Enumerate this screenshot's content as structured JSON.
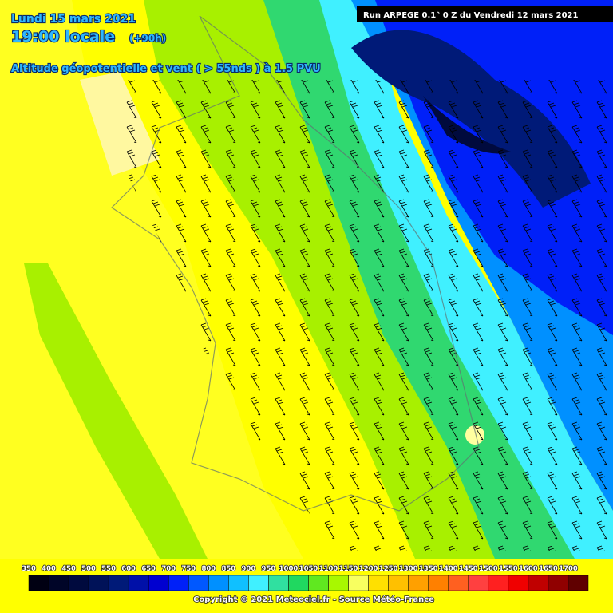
{
  "header": {
    "date": "Lundi 15 mars 2021",
    "time": "19:00 locale",
    "lead": "(+90h)",
    "parameter": "Altitude géopotentielle et vent ( > 55nds ) à 1.5 PVU",
    "run": "Run ARPEGE 0.1° 0 Z du Vendredi 12 mars 2021"
  },
  "legend": [
    {
      "label": "350",
      "color": "#000012"
    },
    {
      "label": "400",
      "color": "#000528"
    },
    {
      "label": "450",
      "color": "#000a3e"
    },
    {
      "label": "500",
      "color": "#001258"
    },
    {
      "label": "550",
      "color": "#001a78"
    },
    {
      "label": "600",
      "color": "#0010a8"
    },
    {
      "label": "650",
      "color": "#0000d0"
    },
    {
      "label": "700",
      "color": "#0020f8"
    },
    {
      "label": "750",
      "color": "#0058ff"
    },
    {
      "label": "800",
      "color": "#0090ff"
    },
    {
      "label": "850",
      "color": "#10c0ff"
    },
    {
      "label": "900",
      "color": "#40f0ff"
    },
    {
      "label": "950",
      "color": "#30e0a0"
    },
    {
      "label": "1000",
      "color": "#20d860"
    },
    {
      "label": "1050",
      "color": "#60e820"
    },
    {
      "label": "1100",
      "color": "#a8f800"
    },
    {
      "label": "1150",
      "color": "#f8ff60"
    },
    {
      "label": "1200",
      "color": "#ffe000"
    },
    {
      "label": "1250",
      "color": "#ffc000"
    },
    {
      "label": "1300",
      "color": "#ffa000"
    },
    {
      "label": "1350",
      "color": "#ff8000"
    },
    {
      "label": "1400",
      "color": "#ff6020"
    },
    {
      "label": "1450",
      "color": "#ff4040"
    },
    {
      "label": "1500",
      "color": "#ff2020"
    },
    {
      "label": "1550",
      "color": "#f00000"
    },
    {
      "label": "1600",
      "color": "#c00000"
    },
    {
      "label": "1650",
      "color": "#900000"
    },
    {
      "label": "1700",
      "color": "#600000"
    }
  ],
  "footer": {
    "copyright": "Copyright © 2021 Meteociel.fr - Source Météo-France"
  }
}
